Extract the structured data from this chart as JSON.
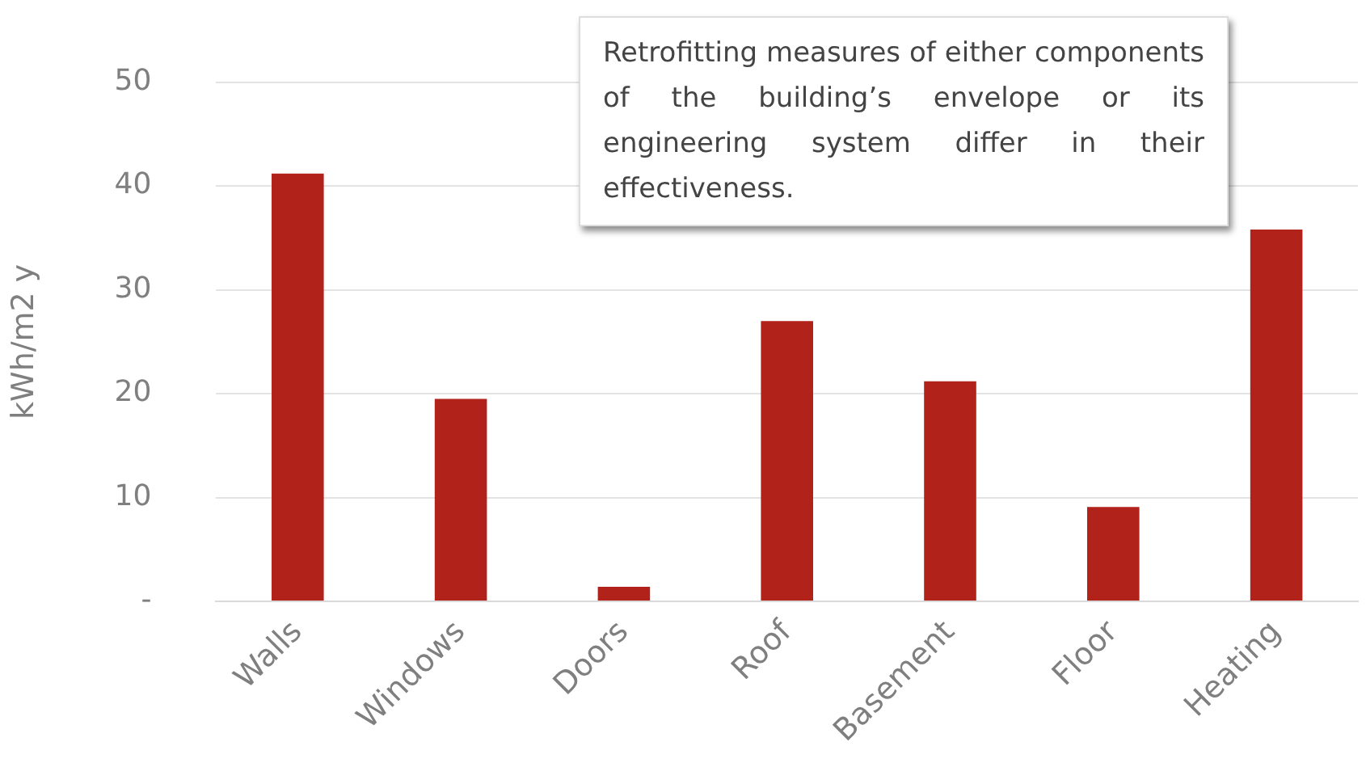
{
  "chart_data": {
    "type": "bar",
    "ylabel": "kWh/m2 y",
    "categories": [
      "Walls",
      "Windows",
      "Doors",
      "Roof",
      "Basement",
      "Floor",
      "Heating"
    ],
    "values": [
      41.2,
      19.5,
      1.4,
      27.0,
      21.2,
      9.1,
      35.8
    ],
    "color": "#b0221a",
    "ylim": [
      0,
      50
    ],
    "yticks": [
      {
        "value": 0,
        "label": "-"
      },
      10,
      20,
      30,
      40,
      50
    ],
    "grid": "y",
    "annotations": [
      "Retrofitting measures of either components of the building’s envelope or its engineering system differ in their effectiveness."
    ]
  }
}
